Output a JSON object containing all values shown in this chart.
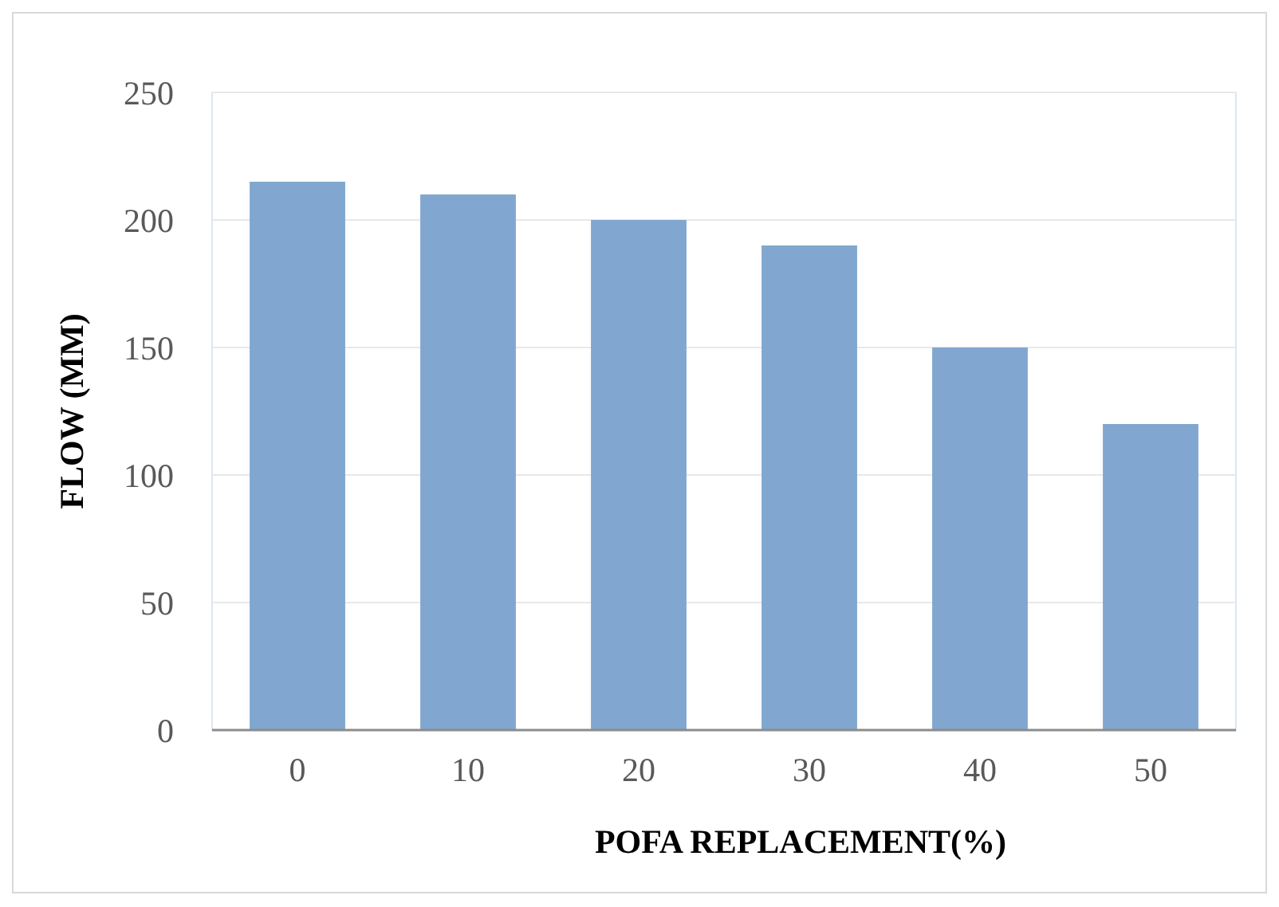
{
  "chart_data": {
    "type": "bar",
    "xlabel": "POFA REPLACEMENT(%)",
    "ylabel": "FLOW (MM)",
    "categories": [
      "0",
      "10",
      "20",
      "30",
      "40",
      "50"
    ],
    "values": [
      215,
      210,
      200,
      190,
      150,
      120
    ],
    "color": "#81a7d0",
    "ylim": [
      0,
      250
    ],
    "yticks": [
      0,
      50,
      100,
      150,
      200,
      250
    ],
    "grid": "y"
  }
}
